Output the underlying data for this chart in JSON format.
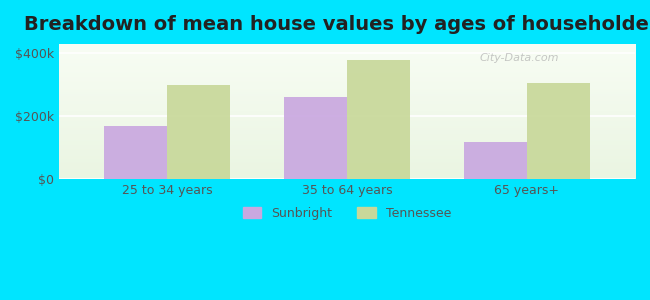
{
  "title": "Breakdown of mean house values by ages of householders",
  "categories": [
    "25 to 34 years",
    "35 to 64 years",
    "65 years+"
  ],
  "sunbright_values": [
    170000,
    260000,
    120000
  ],
  "tennessee_values": [
    300000,
    380000,
    305000
  ],
  "sunbright_color": "#c9a8e0",
  "tennessee_color": "#c8d89a",
  "background_color": "#00e5ff",
  "ylabel_ticks": [
    0,
    200000,
    400000
  ],
  "ylabel_labels": [
    "$0",
    "$200k",
    "$400k"
  ],
  "ylim": [
    0,
    430000
  ],
  "xlim_left": -0.6,
  "xlim_right": 2.6,
  "bar_width": 0.35,
  "legend_sunbright": "Sunbright",
  "legend_tennessee": "Tennessee",
  "title_fontsize": 14,
  "tick_fontsize": 9,
  "legend_fontsize": 9,
  "watermark": "City-Data.com"
}
